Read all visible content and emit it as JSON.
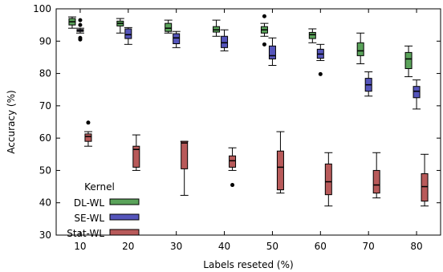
{
  "chart_data": {
    "type": "boxplot",
    "xlabel": "Labels reseted (%)",
    "ylabel": "Accuracy (%)",
    "ylim": [
      30,
      100
    ],
    "yticks": [
      30,
      40,
      50,
      60,
      70,
      80,
      90,
      100
    ],
    "categories": [
      "10",
      "20",
      "30",
      "40",
      "50",
      "60",
      "70",
      "80"
    ],
    "legend": {
      "title": "Kernel",
      "placement": "lower-left"
    },
    "series": [
      {
        "name": "DL-WL",
        "color": "#5aa35a",
        "boxes": [
          {
            "whislo": 94.0,
            "q1": 95.0,
            "med": 96.0,
            "q3": 97.0,
            "whishi": 97.5,
            "fliers": []
          },
          {
            "whislo": 92.5,
            "q1": 94.7,
            "med": 95.5,
            "q3": 96.2,
            "whishi": 97.0,
            "fliers": []
          },
          {
            "whislo": 92.5,
            "q1": 93.0,
            "med": 94.0,
            "q3": 95.5,
            "whishi": 96.5,
            "fliers": []
          },
          {
            "whislo": 91.5,
            "q1": 92.8,
            "med": 93.5,
            "q3": 94.5,
            "whishi": 96.5,
            "fliers": []
          },
          {
            "whislo": 91.5,
            "q1": 92.5,
            "med": 93.5,
            "q3": 94.5,
            "whishi": 95.5,
            "fliers": [
              97.7,
              89.0
            ]
          },
          {
            "whislo": 89.5,
            "q1": 90.8,
            "med": 92.0,
            "q3": 92.7,
            "whishi": 93.8,
            "fliers": []
          },
          {
            "whislo": 83.0,
            "q1": 85.5,
            "med": 87.0,
            "q3": 89.5,
            "whishi": 92.5,
            "fliers": []
          },
          {
            "whislo": 79.0,
            "q1": 81.5,
            "med": 84.5,
            "q3": 86.5,
            "whishi": 88.5,
            "fliers": []
          }
        ]
      },
      {
        "name": "SE-WL",
        "color": "#5555bb",
        "boxes": [
          {
            "whislo": 92.5,
            "q1": 93.0,
            "med": 93.3,
            "q3": 93.6,
            "whishi": 94.0,
            "fliers": [
              96.5,
              95.0,
              91.0,
              90.5
            ]
          },
          {
            "whislo": 89.0,
            "q1": 90.8,
            "med": 92.0,
            "q3": 93.8,
            "whishi": 94.2,
            "fliers": []
          },
          {
            "whislo": 88.0,
            "q1": 89.2,
            "med": 91.0,
            "q3": 92.3,
            "whishi": 93.0,
            "fliers": []
          },
          {
            "whislo": 87.0,
            "q1": 88.0,
            "med": 89.5,
            "q3": 91.5,
            "whishi": 93.5,
            "fliers": []
          },
          {
            "whislo": 82.5,
            "q1": 84.5,
            "med": 85.5,
            "q3": 88.5,
            "whishi": 91.0,
            "fliers": []
          },
          {
            "whislo": 84.0,
            "q1": 84.7,
            "med": 86.0,
            "q3": 87.5,
            "whishi": 89.0,
            "fliers": [
              79.8
            ]
          },
          {
            "whislo": 73.0,
            "q1": 74.5,
            "med": 76.5,
            "q3": 78.5,
            "whishi": 80.5,
            "fliers": []
          },
          {
            "whislo": 69.0,
            "q1": 72.5,
            "med": 74.5,
            "q3": 76.0,
            "whishi": 78.0,
            "fliers": []
          }
        ]
      },
      {
        "name": "Stat-WL",
        "color": "#b85a5a",
        "boxes": [
          {
            "whislo": 57.5,
            "q1": 59.0,
            "med": 60.5,
            "q3": 61.3,
            "whishi": 62.0,
            "fliers": [
              64.8
            ]
          },
          {
            "whislo": 50.0,
            "q1": 51.0,
            "med": 56.5,
            "q3": 57.5,
            "whishi": 61.0,
            "fliers": []
          },
          {
            "whislo": 42.3,
            "q1": 50.5,
            "med": 58.5,
            "q3": 59.0,
            "whishi": 59.0,
            "fliers": []
          },
          {
            "whislo": 50.0,
            "q1": 51.0,
            "med": 53.0,
            "q3": 54.5,
            "whishi": 57.0,
            "fliers": [
              45.5
            ]
          },
          {
            "whislo": 43.0,
            "q1": 44.0,
            "med": 51.0,
            "q3": 56.0,
            "whishi": 62.0,
            "fliers": []
          },
          {
            "whislo": 39.0,
            "q1": 42.5,
            "med": 46.5,
            "q3": 52.0,
            "whishi": 55.5,
            "fliers": []
          },
          {
            "whislo": 41.5,
            "q1": 43.0,
            "med": 45.5,
            "q3": 50.0,
            "whishi": 55.5,
            "fliers": []
          },
          {
            "whislo": 39.0,
            "q1": 40.5,
            "med": 45.0,
            "q3": 49.0,
            "whishi": 55.0,
            "fliers": []
          }
        ]
      }
    ]
  }
}
